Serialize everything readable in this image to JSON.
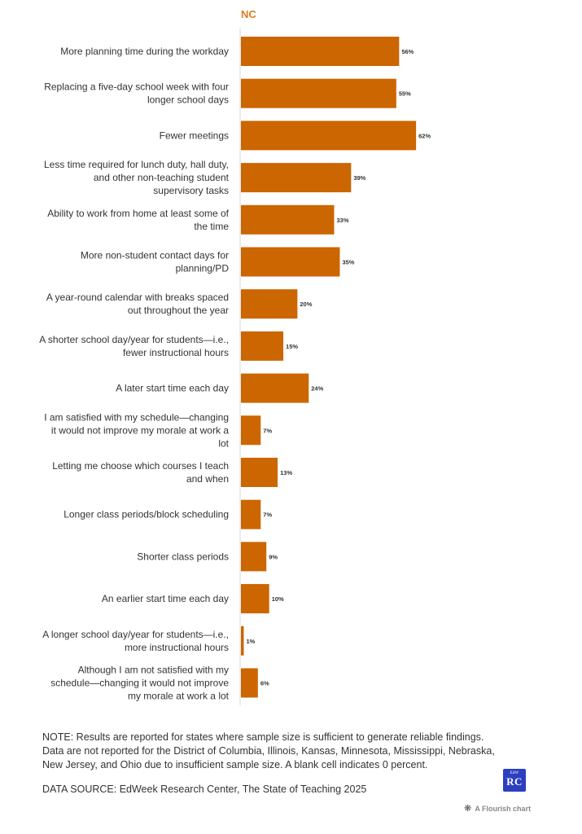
{
  "chart_data": {
    "type": "bar",
    "orientation": "horizontal",
    "title": "NC",
    "categories": [
      [
        "More planning time during the workday"
      ],
      [
        "Replacing a five-day school week with four",
        "longer school days"
      ],
      [
        "Fewer meetings"
      ],
      [
        "Less time required for lunch duty, hall duty,",
        "and other non-teaching student",
        "supervisory tasks"
      ],
      [
        "Ability to work from home at least some of",
        "the time"
      ],
      [
        "More non-student contact days for",
        "planning/PD"
      ],
      [
        "A year-round calendar with breaks spaced",
        "out throughout the year"
      ],
      [
        "A shorter school day/year for students—i.e.,",
        "fewer instructional hours"
      ],
      [
        "A later start time each day"
      ],
      [
        "I am satisfied with my schedule—changing",
        "it would not improve my morale at work a",
        "lot"
      ],
      [
        "Letting me choose which courses I teach",
        "and when"
      ],
      [
        "Longer class periods/block scheduling"
      ],
      [
        "Shorter class periods"
      ],
      [
        "An earlier start time each day"
      ],
      [
        "A longer school day/year for students—i.e.,",
        "more instructional hours"
      ],
      [
        "Although I am not satisfied with my",
        "schedule—changing it would not improve",
        "my morale at work a lot"
      ]
    ],
    "values": [
      56,
      55,
      62,
      39,
      33,
      35,
      20,
      15,
      24,
      7,
      13,
      7,
      9,
      10,
      1,
      6
    ],
    "value_labels": [
      "56%",
      "55%",
      "62%",
      "39%",
      "33%",
      "35%",
      "20%",
      "15%",
      "24%",
      "7%",
      "13%",
      "7%",
      "9%",
      "10%",
      "1%",
      "6%"
    ],
    "unit": "%",
    "xlim": [
      0,
      100
    ],
    "bar_color": "#cc6600",
    "title_color": "#e07a1f",
    "grid": false,
    "legend": "none"
  },
  "footer": {
    "note": "NOTE: Results are reported for states where sample size is sufficient to generate reliable findings. Data are not reported for the District of Columbia, Illinois, Kansas, Minnesota, Mississippi, Nebraska, New Jersey, and Ohio due to insufficient sample size. A blank cell indicates 0 percent.",
    "source": "DATA SOURCE: EdWeek Research Center, The State of Teaching 2025",
    "logo_top": "EdW",
    "logo_main": "RC",
    "flourish_icon": "flourish-star-icon",
    "flourish_text": "A Flourish chart"
  }
}
